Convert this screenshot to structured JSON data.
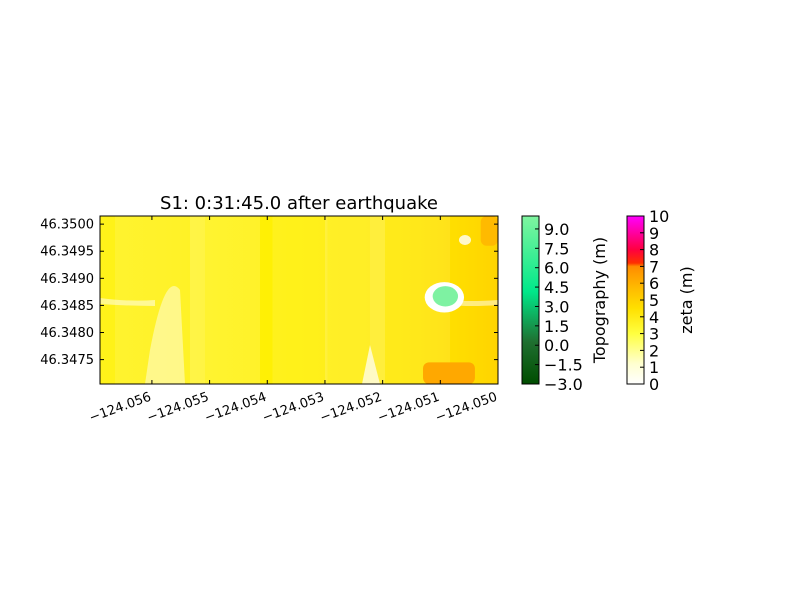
{
  "chart_data": {
    "type": "heatmap",
    "title": "S1: 0:31:45.0 after earthquake",
    "xlim": [
      -124.0569,
      -124.05
    ],
    "ylim": [
      46.34705,
      46.35015
    ],
    "x_ticks": [
      -124.056,
      -124.055,
      -124.054,
      -124.053,
      -124.052,
      -124.051,
      -124.05
    ],
    "x_tick_labels": [
      "−124.056",
      "−124.055",
      "−124.054",
      "−124.053",
      "−124.052",
      "−124.051",
      "−124.050"
    ],
    "y_ticks": [
      46.3475,
      46.348,
      46.3485,
      46.349,
      46.3495,
      46.35
    ],
    "y_tick_labels": [
      "46.3475",
      "46.3480",
      "46.3485",
      "46.3490",
      "46.3495",
      "46.3500"
    ],
    "grid": false,
    "dominant_zeta_m": 5,
    "regions": [
      {
        "kind": "high-flow",
        "zeta_m": 6.5,
        "x": [
          -124.0513,
          -124.0504
        ],
        "y": [
          46.34705,
          46.34745
        ]
      },
      {
        "kind": "high-flow",
        "zeta_m": 6,
        "x": [
          -124.0503,
          -124.05
        ],
        "y": [
          46.3496,
          46.35015
        ]
      },
      {
        "kind": "dry-land",
        "x": -124.05093,
        "y": 46.34865,
        "radius_deg": 0.00022
      }
    ],
    "colorbars": [
      {
        "label": "Topography (m)",
        "range": [
          -3.0,
          10.0
        ],
        "ticks": [
          -3.0,
          -1.5,
          0.0,
          1.5,
          3.0,
          4.5,
          6.0,
          7.5,
          9.0
        ],
        "tick_labels": [
          "−3.0",
          "−1.5",
          "0.0",
          "1.5",
          "3.0",
          "4.5",
          "6.0",
          "7.5",
          "9.0"
        ],
        "colors": [
          "#004d00",
          "#2e8b57",
          "#00e88a",
          "#80f5a0"
        ]
      },
      {
        "label": "zeta (m)",
        "range": [
          0,
          10
        ],
        "ticks": [
          0,
          1,
          2,
          3,
          4,
          5,
          6,
          7,
          8,
          9,
          10
        ],
        "tick_labels": [
          "0",
          "1",
          "2",
          "3",
          "4",
          "5",
          "6",
          "7",
          "8",
          "9",
          "10"
        ],
        "colors": [
          "#ffffff",
          "#ffff00",
          "#ff9900",
          "#ff0000",
          "#ff00ff"
        ]
      }
    ]
  }
}
